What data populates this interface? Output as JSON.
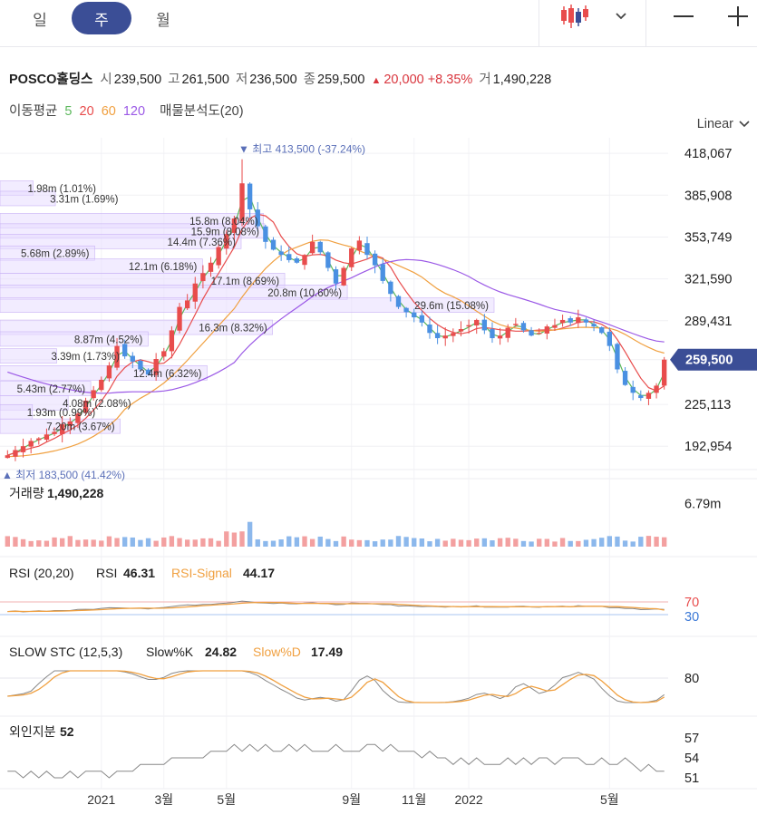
{
  "toolbar": {
    "tabs": [
      {
        "label": "일",
        "active": false
      },
      {
        "label": "주",
        "active": true
      },
      {
        "label": "월",
        "active": false
      }
    ],
    "candle_icon": "candlestick-icon",
    "dropdown_icon": "chevron-down-icon",
    "zoom_out_icon": "minus-icon",
    "zoom_in_icon": "plus-icon"
  },
  "quote": {
    "name": "POSCO홀딩스",
    "open_label": "시",
    "open": "239,500",
    "high_label": "고",
    "high": "261,500",
    "low_label": "저",
    "low": "236,500",
    "close_label": "종",
    "close": "259,500",
    "change": "20,000",
    "change_pct": "+8.35%",
    "volume_label": "거",
    "volume": "1,490,228"
  },
  "indicators": {
    "ma_label": "이동평균",
    "ma": [
      {
        "period": "5",
        "color": "#5cb85c"
      },
      {
        "period": "20",
        "color": "#e84c4c"
      },
      {
        "period": "60",
        "color": "#f0a040"
      },
      {
        "period": "120",
        "color": "#9b59e6"
      }
    ],
    "vp_label": "매물분석도(20)"
  },
  "scale": {
    "label": "Linear"
  },
  "colors": {
    "up": "#e84c4c",
    "down": "#4a90e2",
    "accent": "#3b4e96",
    "vp": "#e8dcff"
  },
  "chart_data": [
    {
      "type": "candlestick",
      "price_ticks": [
        "418,067",
        "385,908",
        "353,749",
        "321,590",
        "289,431",
        "259,500",
        "225,113",
        "192,954"
      ],
      "price_tick_values": [
        418067,
        385908,
        353749,
        321590,
        289431,
        259500,
        225113,
        192954
      ],
      "current_price": "259,500",
      "current_value": 259500,
      "ylim": [
        175000,
        430000
      ],
      "x_labels": [
        "2021",
        "3월",
        "5월",
        "9월",
        "11월",
        "2022",
        "5월"
      ],
      "x_label_index": [
        12,
        20,
        28,
        44,
        52,
        59,
        77
      ],
      "high_marker": {
        "label": "▼ 최고",
        "value": "413,500 (-37.24%)",
        "price": 413500,
        "index": 30
      },
      "low_marker": {
        "label": "▲ 최저",
        "value": "183,500 (41.42%)",
        "price": 183500,
        "index": 0
      },
      "closes": [
        186000,
        190000,
        193000,
        197000,
        199000,
        202000,
        204000,
        210000,
        212000,
        218000,
        228000,
        236000,
        244000,
        255000,
        270000,
        262000,
        258000,
        252000,
        248000,
        260000,
        266000,
        282000,
        300000,
        305000,
        318000,
        326000,
        334000,
        346000,
        356000,
        368000,
        395000,
        375000,
        362000,
        350000,
        344000,
        340000,
        336000,
        334000,
        340000,
        350000,
        342000,
        330000,
        318000,
        330000,
        345000,
        351000,
        340000,
        332000,
        320000,
        310000,
        300000,
        296000,
        292000,
        288000,
        280000,
        276000,
        278000,
        280000,
        283000,
        286000,
        290000,
        282000,
        276000,
        278000,
        284000,
        287000,
        282000,
        278000,
        280000,
        285000,
        286000,
        290000,
        288000,
        292000,
        288000,
        285000,
        280000,
        270000,
        252000,
        240000,
        234000,
        230000,
        234000,
        239500,
        259500
      ],
      "volume_profile": [
        {
          "label": "1.98m (1.01%)",
          "price": 391000,
          "pct": 1.01
        },
        {
          "label": "3.31m (1.69%)",
          "price": 383000,
          "pct": 1.69
        },
        {
          "label": "15.8m (8.04%)",
          "price": 366000,
          "pct": 8.04
        },
        {
          "label": "15.9m (8.08%)",
          "price": 358000,
          "pct": 8.08
        },
        {
          "label": "14.4m (7.36%)",
          "price": 350000,
          "pct": 7.36
        },
        {
          "label": "5.68m (2.89%)",
          "price": 341000,
          "pct": 2.89
        },
        {
          "label": "12.1m (6.18%)",
          "price": 331000,
          "pct": 6.18
        },
        {
          "label": "17.1m (8.69%)",
          "price": 320000,
          "pct": 8.69
        },
        {
          "label": "20.8m (10.60%)",
          "price": 311000,
          "pct": 10.6
        },
        {
          "label": "29.6m (15.08%)",
          "price": 301000,
          "pct": 15.08
        },
        {
          "label": "16.3m (8.32%)",
          "price": 284000,
          "pct": 8.32
        },
        {
          "label": "8.87m (4.52%)",
          "price": 275000,
          "pct": 4.52
        },
        {
          "label": "3.39m (1.73%)",
          "price": 262000,
          "pct": 1.73
        },
        {
          "label": "12.4m (6.32%)",
          "price": 249000,
          "pct": 6.32
        },
        {
          "label": "5.43m (2.77%)",
          "price": 237000,
          "pct": 2.77
        },
        {
          "label": "4.08m (2.08%)",
          "price": 226000,
          "pct": 2.08
        },
        {
          "label": "1.93m (0.99%)",
          "price": 219000,
          "pct": 0.99
        },
        {
          "label": "7.20m (3.67%)",
          "price": 208000,
          "pct": 3.67
        }
      ]
    },
    {
      "type": "bar",
      "title": "거래량",
      "value": "1,490,228",
      "tick": "6.79m",
      "tick_value": 6790000,
      "ylim": [
        0,
        9000000
      ]
    },
    {
      "type": "line",
      "title": "RSI (20,20)",
      "series": [
        {
          "name": "RSI",
          "value": "46.31",
          "color": "#888888"
        },
        {
          "name": "RSI-Signal",
          "value": "44.17",
          "color": "#f0a040"
        }
      ],
      "levels": [
        "70",
        "30"
      ],
      "level_values": [
        70,
        30
      ],
      "ylim": [
        0,
        100
      ]
    },
    {
      "type": "line",
      "title": "SLOW STC (12,5,3)",
      "series": [
        {
          "name": "Slow%K",
          "value": "24.82",
          "color": "#888888"
        },
        {
          "name": "Slow%D",
          "value": "17.49",
          "color": "#f0a040"
        }
      ],
      "levels": [
        "80"
      ],
      "level_values": [
        80
      ],
      "ylim": [
        0,
        100
      ]
    },
    {
      "type": "line",
      "title": "외인지분",
      "value": "52",
      "ticks": [
        "57",
        "54",
        "51"
      ],
      "tick_values": [
        57,
        54,
        51
      ],
      "ylim": [
        50,
        58
      ],
      "values": [
        52,
        52,
        51,
        52,
        51,
        52,
        51,
        51,
        52,
        51,
        52,
        52,
        52,
        51,
        52,
        52,
        52,
        53,
        53,
        53,
        53,
        54,
        54,
        54,
        54,
        54,
        55,
        55,
        55,
        56,
        55,
        56,
        55,
        56,
        55,
        55,
        56,
        55,
        56,
        55,
        55,
        55,
        56,
        55,
        55,
        55,
        56,
        56,
        55,
        56,
        55,
        55,
        55,
        54,
        55,
        54,
        54,
        53,
        54,
        53,
        54,
        53,
        53,
        53,
        54,
        53,
        54,
        53,
        54,
        54,
        53,
        54,
        54,
        54,
        53,
        53,
        54,
        53,
        53,
        54,
        53,
        52,
        53,
        52,
        52
      ]
    }
  ]
}
